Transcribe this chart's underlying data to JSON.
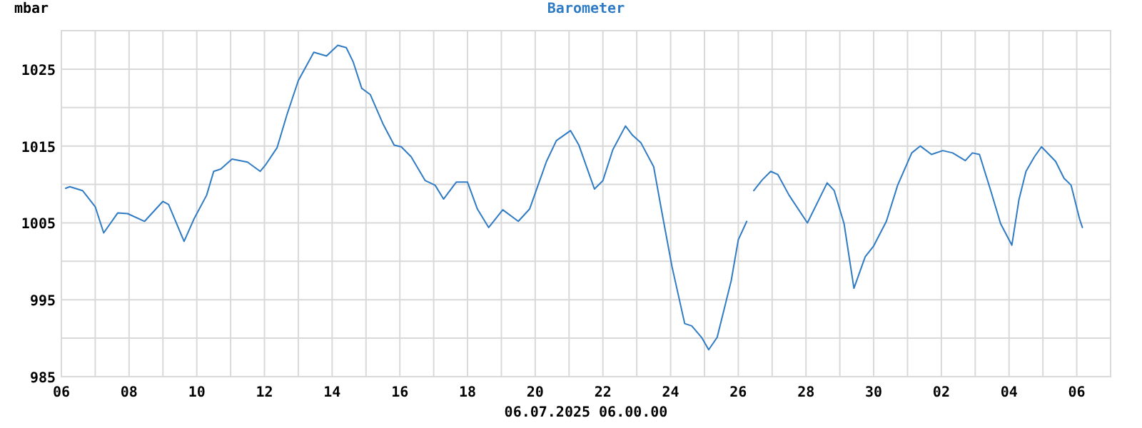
{
  "chart_data": {
    "type": "line",
    "title": "Barometer",
    "ylabel": "mbar",
    "xlabel": "06.07.2025 06.00.00",
    "xlim": [
      "2025-06-06",
      "2025-07-07"
    ],
    "xticks": [
      {
        "value": "2025-06-06",
        "label": "06"
      },
      {
        "value": "2025-06-07",
        "label": null
      },
      {
        "value": "2025-06-08",
        "label": "08"
      },
      {
        "value": "2025-06-09",
        "label": null
      },
      {
        "value": "2025-06-10",
        "label": "10"
      },
      {
        "value": "2025-06-11",
        "label": null
      },
      {
        "value": "2025-06-12",
        "label": "12"
      },
      {
        "value": "2025-06-13",
        "label": null
      },
      {
        "value": "2025-06-14",
        "label": "14"
      },
      {
        "value": "2025-06-15",
        "label": null
      },
      {
        "value": "2025-06-16",
        "label": "16"
      },
      {
        "value": "2025-06-17",
        "label": null
      },
      {
        "value": "2025-06-18",
        "label": "18"
      },
      {
        "value": "2025-06-19",
        "label": null
      },
      {
        "value": "2025-06-20",
        "label": "20"
      },
      {
        "value": "2025-06-21",
        "label": null
      },
      {
        "value": "2025-06-22",
        "label": "22"
      },
      {
        "value": "2025-06-23",
        "label": null
      },
      {
        "value": "2025-06-24",
        "label": "24"
      },
      {
        "value": "2025-06-25",
        "label": null
      },
      {
        "value": "2025-06-26",
        "label": "26"
      },
      {
        "value": "2025-06-27",
        "label": null
      },
      {
        "value": "2025-06-28",
        "label": "28"
      },
      {
        "value": "2025-06-29",
        "label": null
      },
      {
        "value": "2025-06-30",
        "label": "30"
      },
      {
        "value": "2025-07-01",
        "label": null
      },
      {
        "value": "2025-07-02",
        "label": "02"
      },
      {
        "value": "2025-07-03",
        "label": null
      },
      {
        "value": "2025-07-04",
        "label": "04"
      },
      {
        "value": "2025-07-05",
        "label": null
      },
      {
        "value": "2025-07-06",
        "label": "06"
      }
    ],
    "ylim": [
      985,
      1030
    ],
    "yticks": [
      985,
      {
        "value": 990,
        "label": null
      },
      995,
      {
        "value": 1000,
        "label": null
      },
      1005,
      {
        "value": 1010,
        "label": null
      },
      1015,
      {
        "value": 1020,
        "label": null
      },
      1025,
      {
        "value": 1030,
        "label": null
      }
    ],
    "grid": true,
    "marker": "none",
    "line_style": "solid",
    "x": [
      "2025-06-06T03:00",
      "2025-06-06T06:00",
      "2025-06-06T15:00",
      "2025-06-07T00:00",
      "2025-06-07T06:00",
      "2025-06-07T16:00",
      "2025-06-07T23:00",
      "2025-06-08T11:00",
      "2025-06-09T00:00",
      "2025-06-09T04:00",
      "2025-06-09T15:00",
      "2025-06-09T22:00",
      "2025-06-10T07:00",
      "2025-06-10T12:00",
      "2025-06-10T17:00",
      "2025-06-11T01:00",
      "2025-06-11T12:00",
      "2025-06-11T21:00",
      "2025-06-12T01:00",
      "2025-06-12T09:00",
      "2025-06-12T16:00",
      "2025-06-13T00:00",
      "2025-06-13T11:00",
      "2025-06-13T20:00",
      "2025-06-14T04:00",
      "2025-06-14T10:00",
      "2025-06-14T15:00",
      "2025-06-14T21:00",
      "2025-06-15T03:00",
      "2025-06-15T12:00",
      "2025-06-15T20:00",
      "2025-06-16T01:00",
      "2025-06-16T08:00",
      "2025-06-16T18:00",
      "2025-06-17T01:00",
      "2025-06-17T07:00",
      "2025-06-17T16:00",
      "2025-06-18T00:00",
      "2025-06-18T07:00",
      "2025-06-18T15:00",
      "2025-06-19T01:00",
      "2025-06-19T12:00",
      "2025-06-19T20:00",
      "2025-06-20T08:00",
      "2025-06-20T15:00",
      "2025-06-21T01:00",
      "2025-06-21T07:00",
      "2025-06-21T18:00",
      "2025-06-22T00:00",
      "2025-06-22T07:00",
      "2025-06-22T16:00",
      "2025-06-22T21:00",
      "2025-06-23T03:00",
      "2025-06-23T12:00",
      "2025-06-23T18:00",
      "2025-06-24T01:00",
      "2025-06-24T10:00",
      "2025-06-24T15:00",
      "2025-06-24T22:00",
      "2025-06-25T03:00",
      "2025-06-25T09:00",
      "2025-06-25T19:00",
      "2025-06-26T00:00",
      "2025-06-26T06:00",
      "2025-06-26T08:00",
      "2025-06-26T11:00",
      "2025-06-26T17:00",
      "2025-06-26T23:00",
      "2025-06-27T04:00",
      "2025-06-27T12:00",
      "2025-06-28T01:00",
      "2025-06-28T15:00",
      "2025-06-28T20:00",
      "2025-06-29T03:00",
      "2025-06-29T10:00",
      "2025-06-29T18:00",
      "2025-06-30T00:00",
      "2025-06-30T09:00",
      "2025-06-30T17:00",
      "2025-07-01T03:00",
      "2025-07-01T09:00",
      "2025-07-01T17:00",
      "2025-07-02T01:00",
      "2025-07-02T08:00",
      "2025-07-02T17:00",
      "2025-07-02T22:00",
      "2025-07-03T03:00",
      "2025-07-03T11:00",
      "2025-07-03T18:00",
      "2025-07-04T02:00",
      "2025-07-04T07:00",
      "2025-07-04T12:00",
      "2025-07-04T18:00",
      "2025-07-04T23:00",
      "2025-07-05T09:00",
      "2025-07-05T15:00",
      "2025-07-05T20:00",
      "2025-07-06T02:00",
      "2025-07-06T04:00"
    ],
    "series": [
      {
        "color": "#2f7bc4",
        "values": [
          1009.5,
          1009.7,
          1009.2,
          1007.1,
          1003.7,
          1006.3,
          1006.2,
          1005.2,
          1007.8,
          1007.4,
          1002.6,
          1005.5,
          1008.6,
          1011.7,
          1012.0,
          1013.3,
          1012.9,
          1011.7,
          1012.6,
          1014.8,
          1019.1,
          1023.5,
          1027.2,
          1026.7,
          1028.1,
          1027.8,
          1025.9,
          1022.5,
          1021.7,
          1017.9,
          1015.1,
          1014.9,
          1013.6,
          1010.5,
          1009.9,
          1008.1,
          1010.3,
          1010.3,
          1006.8,
          1004.4,
          1006.7,
          1005.2,
          1006.8,
          1013.0,
          1015.7,
          1017.0,
          1015.1,
          1009.4,
          1010.5,
          1014.5,
          1017.6,
          1016.4,
          1015.4,
          1012.3,
          1006.2,
          999.3,
          991.9,
          991.6,
          990.1,
          988.5,
          990.1,
          997.5,
          1002.8,
          1005.2,
          null,
          1009.2,
          1010.6,
          1011.7,
          1011.3,
          1008.6,
          1005.0,
          1010.2,
          1009.2,
          1004.9,
          996.5,
          1000.6,
          1002.0,
          1005.2,
          1009.9,
          1014.1,
          1015.0,
          1013.9,
          1014.4,
          1014.1,
          1013.1,
          1014.1,
          1013.9,
          1009.2,
          1004.9,
          1002.1,
          1008.0,
          1011.7,
          1013.6,
          1014.9,
          1013.0,
          1010.8,
          1009.9,
          1005.5,
          1004.4
        ]
      }
    ]
  }
}
